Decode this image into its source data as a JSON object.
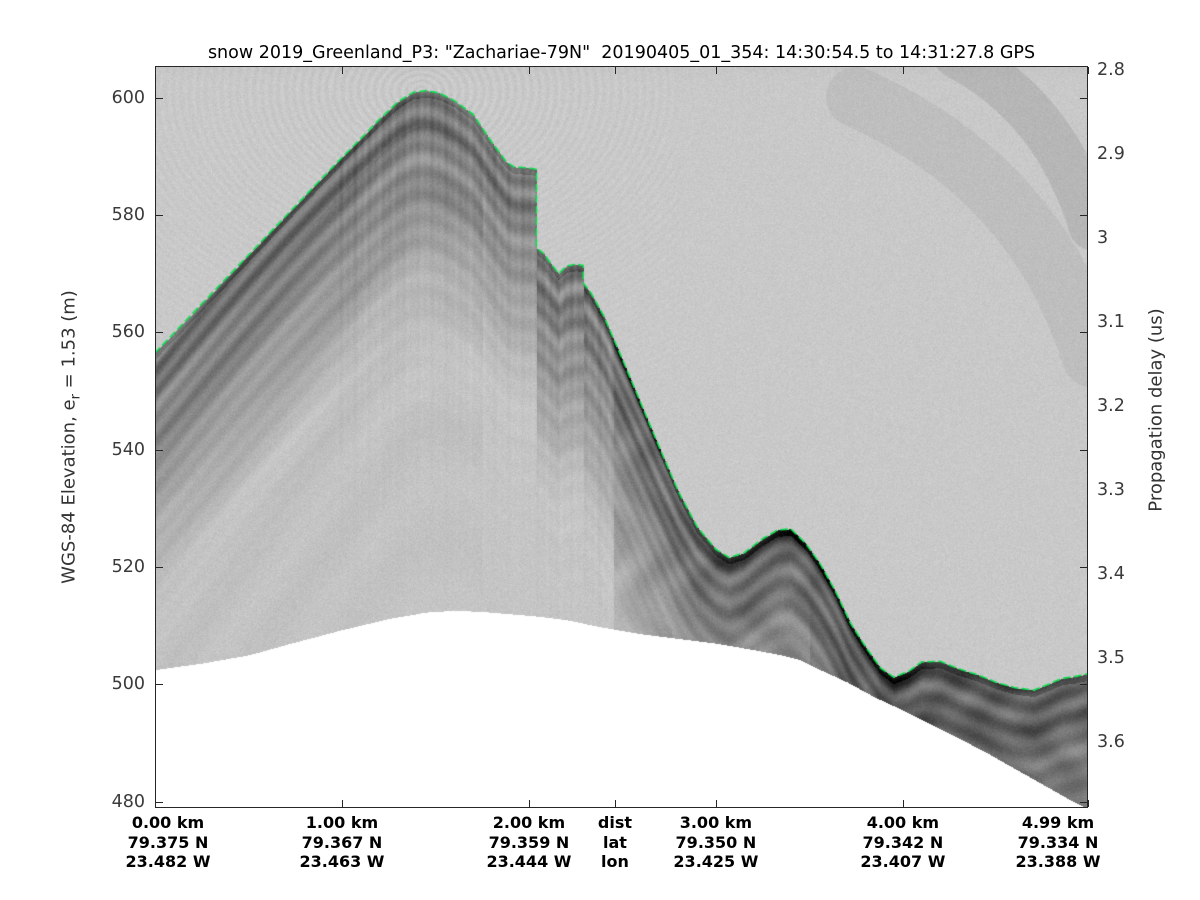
{
  "title": "snow 2019_Greenland_P3: \"Zachariae-79N\"  20190405_01_354: 14:30:54.5 to 14:31:27.8 GPS",
  "axes": {
    "left": {
      "label_prefix": "WGS-84 Elevation, e",
      "label_sub": "r",
      "label_suffix": " = 1.53 (m)",
      "ticks": [
        600,
        580,
        560,
        540,
        520,
        500,
        480
      ]
    },
    "right": {
      "label": "Propagation delay (us)",
      "ticks": [
        "2.8",
        "2.9",
        "3",
        "3.1",
        "3.2",
        "3.3",
        "3.4",
        "3.5",
        "3.6"
      ]
    },
    "bottom": {
      "header": {
        "dist": "dist",
        "lat": "lat",
        "lon": "lon",
        "km": 2.46
      },
      "columns": [
        {
          "km": 0.0,
          "dist": "0.00 km",
          "lat": "79.375 N",
          "lon": "23.482 W"
        },
        {
          "km": 1.0,
          "dist": "1.00 km",
          "lat": "79.367 N",
          "lon": "23.463 W"
        },
        {
          "km": 2.0,
          "dist": "2.00 km",
          "lat": "79.359 N",
          "lon": "23.444 W"
        },
        {
          "km": 3.0,
          "dist": "3.00 km",
          "lat": "79.350 N",
          "lon": "23.425 W"
        },
        {
          "km": 4.0,
          "dist": "4.00 km",
          "lat": "79.342 N",
          "lon": "23.407 W"
        },
        {
          "km": 4.99,
          "dist": "4.99 km",
          "lat": "79.334 N",
          "lon": "23.388 W"
        }
      ],
      "x_ticks_km": [
        0,
        1,
        2,
        2.46,
        3,
        4,
        4.99
      ]
    }
  },
  "chart_data": {
    "type": "heatmap",
    "subtype": "radar-echogram",
    "title": "snow 2019_Greenland_P3: \"Zachariae-79N\"  20190405_01_354: 14:30:54.5 to 14:31:27.8 GPS",
    "x_range_km": [
      0,
      4.99
    ],
    "elevation_range_m": [
      478.9,
      605.4
    ],
    "delay_range_us": [
      2.795,
      3.68
    ],
    "delay_tick_start_us": 2.8,
    "surface_line_color": "#0be04e",
    "surface_line_style": "dashed",
    "surface_steps_km": [
      2.04,
      2.29
    ],
    "surface_profile_m": [
      [
        0.0,
        556.5
      ],
      [
        0.15,
        561.5
      ],
      [
        0.3,
        566.5
      ],
      [
        0.45,
        571.5
      ],
      [
        0.6,
        576.5
      ],
      [
        0.75,
        581.5
      ],
      [
        0.9,
        586.5
      ],
      [
        1.0,
        589.8
      ],
      [
        1.1,
        593.0
      ],
      [
        1.2,
        596.3
      ],
      [
        1.3,
        599.3
      ],
      [
        1.38,
        600.9
      ],
      [
        1.45,
        601.2
      ],
      [
        1.52,
        600.8
      ],
      [
        1.6,
        599.5
      ],
      [
        1.7,
        597.2
      ],
      [
        1.8,
        592.5
      ],
      [
        1.88,
        589.0
      ],
      [
        1.92,
        588.2
      ],
      [
        2.0,
        588.0
      ],
      [
        2.04,
        587.8
      ],
      [
        2.04,
        574.4
      ],
      [
        2.08,
        573.4
      ],
      [
        2.12,
        571.6
      ],
      [
        2.16,
        570.0
      ],
      [
        2.2,
        571.3
      ],
      [
        2.25,
        571.6
      ],
      [
        2.29,
        571.4
      ],
      [
        2.29,
        568.4
      ],
      [
        2.33,
        566.8
      ],
      [
        2.4,
        562.8
      ],
      [
        2.5,
        555.4
      ],
      [
        2.6,
        547.8
      ],
      [
        2.7,
        540.2
      ],
      [
        2.8,
        532.8
      ],
      [
        2.9,
        526.8
      ],
      [
        3.0,
        523.0
      ],
      [
        3.07,
        521.6
      ],
      [
        3.15,
        522.4
      ],
      [
        3.25,
        524.8
      ],
      [
        3.33,
        526.3
      ],
      [
        3.4,
        526.5
      ],
      [
        3.48,
        524.0
      ],
      [
        3.56,
        520.4
      ],
      [
        3.64,
        515.8
      ],
      [
        3.72,
        510.4
      ],
      [
        3.8,
        506.4
      ],
      [
        3.88,
        502.8
      ],
      [
        3.95,
        501.2
      ],
      [
        4.03,
        502.2
      ],
      [
        4.1,
        503.8
      ],
      [
        4.2,
        503.9
      ],
      [
        4.3,
        502.6
      ],
      [
        4.4,
        501.6
      ],
      [
        4.5,
        500.3
      ],
      [
        4.6,
        499.4
      ],
      [
        4.7,
        499.0
      ],
      [
        4.78,
        500.0
      ],
      [
        4.85,
        501.0
      ],
      [
        4.92,
        501.3
      ],
      [
        4.99,
        501.8
      ]
    ],
    "data_bottom_profile_m": [
      [
        0.0,
        502.5
      ],
      [
        0.25,
        503.6
      ],
      [
        0.5,
        505.0
      ],
      [
        0.75,
        507.2
      ],
      [
        1.0,
        509.3
      ],
      [
        1.25,
        511.2
      ],
      [
        1.45,
        512.3
      ],
      [
        1.6,
        512.6
      ],
      [
        1.75,
        512.4
      ],
      [
        1.9,
        512.0
      ],
      [
        2.05,
        511.6
      ],
      [
        2.2,
        511.0
      ],
      [
        2.38,
        509.8
      ],
      [
        2.6,
        508.6
      ],
      [
        2.8,
        507.8
      ],
      [
        3.0,
        507.0
      ],
      [
        3.2,
        505.9
      ],
      [
        3.35,
        505.0
      ],
      [
        3.45,
        504.2
      ],
      [
        3.55,
        502.6
      ],
      [
        3.7,
        500.4
      ],
      [
        3.85,
        497.8
      ],
      [
        4.0,
        495.6
      ],
      [
        4.15,
        493.2
      ],
      [
        4.3,
        490.8
      ],
      [
        4.45,
        488.3
      ],
      [
        4.6,
        485.6
      ],
      [
        4.75,
        482.9
      ],
      [
        4.9,
        480.2
      ],
      [
        4.99,
        478.8
      ]
    ]
  },
  "colors": {
    "axis": "#262626",
    "tick_label": "#3a3a3a",
    "bottom_label": "#000000",
    "title": "#000000",
    "surface_line": "#0be04e",
    "background": "#ffffff"
  }
}
